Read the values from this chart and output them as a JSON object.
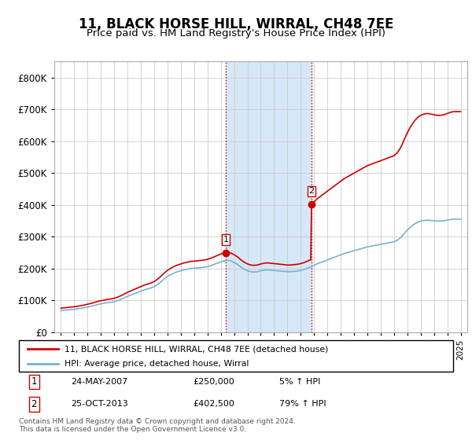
{
  "title": "11, BLACK HORSE HILL, WIRRAL, CH48 7EE",
  "subtitle": "Price paid vs. HM Land Registry's House Price Index (HPI)",
  "bg_color": "#ffffff",
  "grid_color": "#cccccc",
  "sale1_date": 2007.38,
  "sale1_price": 250000,
  "sale2_date": 2013.81,
  "sale2_price": 402500,
  "shade_color": "#d6e8f7",
  "vline_color": "#cc0000",
  "red_line_color": "#cc0000",
  "blue_line_color": "#7bafd4",
  "ylim": [
    0,
    850000
  ],
  "yticks": [
    0,
    100000,
    200000,
    300000,
    400000,
    500000,
    600000,
    700000,
    800000
  ],
  "xlim": [
    1994.5,
    2025.5
  ],
  "xticks": [
    1995,
    1996,
    1997,
    1998,
    1999,
    2000,
    2001,
    2002,
    2003,
    2004,
    2005,
    2006,
    2007,
    2008,
    2009,
    2010,
    2011,
    2012,
    2013,
    2014,
    2015,
    2016,
    2017,
    2018,
    2019,
    2020,
    2021,
    2022,
    2023,
    2024,
    2025
  ],
  "legend_label_red": "11, BLACK HORSE HILL, WIRRAL, CH48 7EE (detached house)",
  "legend_label_blue": "HPI: Average price, detached house, Wirral",
  "table_row1": [
    "1",
    "24-MAY-2007",
    "£250,000",
    "5% ↑ HPI"
  ],
  "table_row2": [
    "2",
    "25-OCT-2013",
    "£402,500",
    "79% ↑ HPI"
  ],
  "footer": "Contains HM Land Registry data © Crown copyright and database right 2024.\nThis data is licensed under the Open Government Licence v3.0.",
  "hpi_data": [
    [
      1995.0,
      68000
    ],
    [
      1995.25,
      69000
    ],
    [
      1995.5,
      70000
    ],
    [
      1995.75,
      71000
    ],
    [
      1996.0,
      72000
    ],
    [
      1996.25,
      73500
    ],
    [
      1996.5,
      75000
    ],
    [
      1996.75,
      77000
    ],
    [
      1997.0,
      79000
    ],
    [
      1997.25,
      81500
    ],
    [
      1997.5,
      84000
    ],
    [
      1997.75,
      87000
    ],
    [
      1998.0,
      89000
    ],
    [
      1998.25,
      91000
    ],
    [
      1998.5,
      93000
    ],
    [
      1998.75,
      94000
    ],
    [
      1999.0,
      96000
    ],
    [
      1999.25,
      99000
    ],
    [
      1999.5,
      103000
    ],
    [
      1999.75,
      108000
    ],
    [
      2000.0,
      113000
    ],
    [
      2000.25,
      117000
    ],
    [
      2000.5,
      121000
    ],
    [
      2000.75,
      125000
    ],
    [
      2001.0,
      129000
    ],
    [
      2001.25,
      133000
    ],
    [
      2001.5,
      136000
    ],
    [
      2001.75,
      139000
    ],
    [
      2002.0,
      143000
    ],
    [
      2002.25,
      150000
    ],
    [
      2002.5,
      158000
    ],
    [
      2002.75,
      167000
    ],
    [
      2003.0,
      175000
    ],
    [
      2003.25,
      181000
    ],
    [
      2003.5,
      186000
    ],
    [
      2003.75,
      190000
    ],
    [
      2004.0,
      193000
    ],
    [
      2004.25,
      196000
    ],
    [
      2004.5,
      198000
    ],
    [
      2004.75,
      200000
    ],
    [
      2005.0,
      201000
    ],
    [
      2005.25,
      202000
    ],
    [
      2005.5,
      203000
    ],
    [
      2005.75,
      204000
    ],
    [
      2006.0,
      206000
    ],
    [
      2006.25,
      209000
    ],
    [
      2006.5,
      213000
    ],
    [
      2006.75,
      217000
    ],
    [
      2007.0,
      221000
    ],
    [
      2007.25,
      224000
    ],
    [
      2007.5,
      226000
    ],
    [
      2007.75,
      224000
    ],
    [
      2008.0,
      219000
    ],
    [
      2008.25,
      213000
    ],
    [
      2008.5,
      205000
    ],
    [
      2008.75,
      198000
    ],
    [
      2009.0,
      193000
    ],
    [
      2009.25,
      190000
    ],
    [
      2009.5,
      189000
    ],
    [
      2009.75,
      190000
    ],
    [
      2010.0,
      193000
    ],
    [
      2010.25,
      195000
    ],
    [
      2010.5,
      196000
    ],
    [
      2010.75,
      195000
    ],
    [
      2011.0,
      194000
    ],
    [
      2011.25,
      193000
    ],
    [
      2011.5,
      192000
    ],
    [
      2011.75,
      191000
    ],
    [
      2012.0,
      190000
    ],
    [
      2012.25,
      190000
    ],
    [
      2012.5,
      191000
    ],
    [
      2012.75,
      192000
    ],
    [
      2013.0,
      194000
    ],
    [
      2013.25,
      197000
    ],
    [
      2013.5,
      201000
    ],
    [
      2013.75,
      205000
    ],
    [
      2014.0,
      210000
    ],
    [
      2014.25,
      215000
    ],
    [
      2014.5,
      219000
    ],
    [
      2014.75,
      223000
    ],
    [
      2015.0,
      227000
    ],
    [
      2015.25,
      231000
    ],
    [
      2015.5,
      235000
    ],
    [
      2015.75,
      239000
    ],
    [
      2016.0,
      243000
    ],
    [
      2016.25,
      247000
    ],
    [
      2016.5,
      250000
    ],
    [
      2016.75,
      253000
    ],
    [
      2017.0,
      256000
    ],
    [
      2017.25,
      259000
    ],
    [
      2017.5,
      262000
    ],
    [
      2017.75,
      265000
    ],
    [
      2018.0,
      268000
    ],
    [
      2018.25,
      270000
    ],
    [
      2018.5,
      272000
    ],
    [
      2018.75,
      274000
    ],
    [
      2019.0,
      276000
    ],
    [
      2019.25,
      278000
    ],
    [
      2019.5,
      280000
    ],
    [
      2019.75,
      282000
    ],
    [
      2020.0,
      284000
    ],
    [
      2020.25,
      289000
    ],
    [
      2020.5,
      297000
    ],
    [
      2020.75,
      309000
    ],
    [
      2021.0,
      321000
    ],
    [
      2021.25,
      331000
    ],
    [
      2021.5,
      339000
    ],
    [
      2021.75,
      345000
    ],
    [
      2022.0,
      349000
    ],
    [
      2022.25,
      351000
    ],
    [
      2022.5,
      352000
    ],
    [
      2022.75,
      351000
    ],
    [
      2023.0,
      350000
    ],
    [
      2023.25,
      349000
    ],
    [
      2023.5,
      349000
    ],
    [
      2023.75,
      350000
    ],
    [
      2024.0,
      352000
    ],
    [
      2024.25,
      354000
    ],
    [
      2024.5,
      355000
    ],
    [
      2024.75,
      355000
    ],
    [
      2025.0,
      355000
    ]
  ]
}
